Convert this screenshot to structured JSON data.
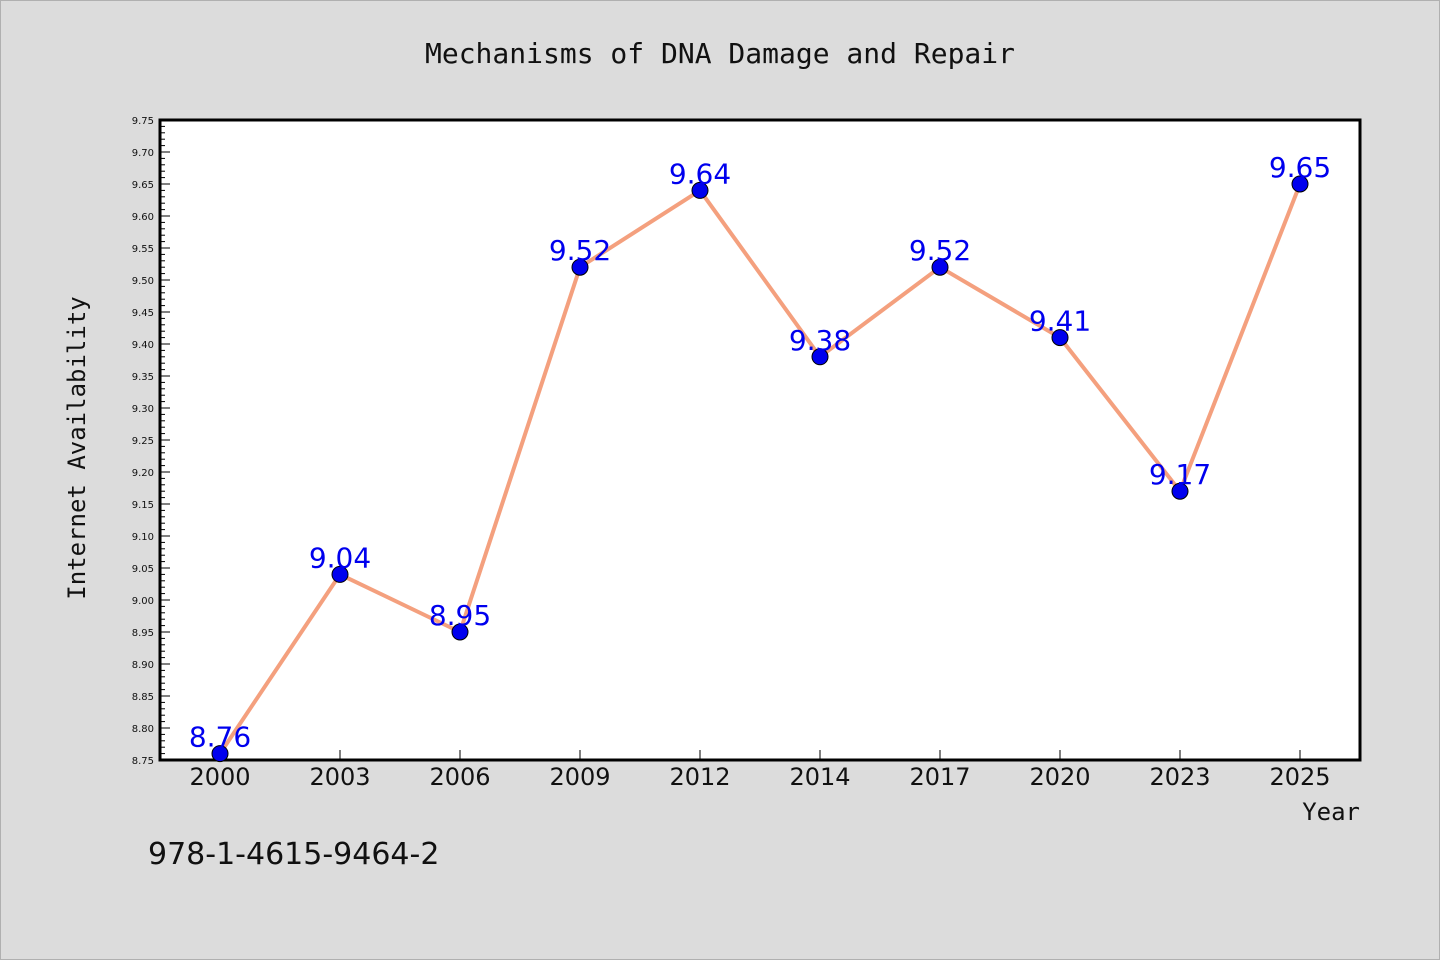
{
  "chart_data": {
    "type": "line",
    "title": "Mechanisms of DNA Damage and Repair",
    "xlabel": "Year",
    "ylabel": "Internet Availability",
    "categories": [
      "2000",
      "2003",
      "2006",
      "2009",
      "2012",
      "2014",
      "2017",
      "2020",
      "2023",
      "2025"
    ],
    "values": [
      8.76,
      9.04,
      8.95,
      9.52,
      9.64,
      9.38,
      9.52,
      9.41,
      9.17,
      9.65
    ],
    "data_labels": [
      "8.76",
      "9.04",
      "8.95",
      "9.52",
      "9.64",
      "9.38",
      "9.52",
      "9.41",
      "9.17",
      "9.65"
    ],
    "ylim": [
      8.75,
      9.75
    ],
    "yticks": [
      "8.75",
      "8.80",
      "8.85",
      "8.90",
      "8.95",
      "9.00",
      "9.05",
      "9.10",
      "9.15",
      "9.20",
      "9.25",
      "9.30",
      "9.35",
      "9.40",
      "9.45",
      "9.50",
      "9.55",
      "9.60",
      "9.65",
      "9.70",
      "9.75"
    ],
    "grid": false,
    "line_color": "#f4a07e",
    "marker_color": "#0000ee",
    "label_color": "#0000ee"
  },
  "footer_text": "978-1-4615-9464-2"
}
